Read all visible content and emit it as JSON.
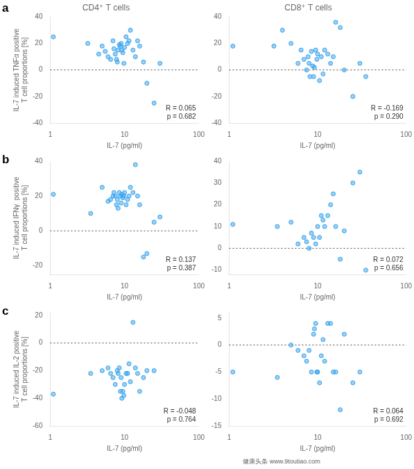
{
  "chart_data": [
    {
      "type": "scatter",
      "title": "CD4⁺ T cells",
      "panel_label": "a",
      "x": [
        1.1,
        3.2,
        4.5,
        5.0,
        5.5,
        6.0,
        6.5,
        7.0,
        7.2,
        7.5,
        7.8,
        8.0,
        8.2,
        8.5,
        8.8,
        9.0,
        9.2,
        9.5,
        9.8,
        10.0,
        10.5,
        11.0,
        11.5,
        12.0,
        13.0,
        14.0,
        15.0,
        16.0,
        18.0,
        20.0,
        25.0,
        30.0
      ],
      "values": [
        25,
        20,
        12,
        18,
        14,
        10,
        8,
        22,
        16,
        12,
        8,
        6,
        15,
        19,
        18,
        20,
        15,
        13,
        5,
        17,
        25,
        20,
        22,
        30,
        15,
        10,
        22,
        18,
        6,
        -10,
        -25,
        5
      ],
      "annotation": "R = 0.065\np = 0.682",
      "reference_line": {
        "value": 0,
        "line_style": "dotted",
        "color": "#444444"
      },
      "xlabel": "IL-7 (pg/ml)",
      "ylabel": "IL-7 induced TNFα positive\nT cell proportions [%]",
      "log": "x",
      "xlim": [
        1,
        100
      ],
      "xticks": [
        1,
        10,
        100
      ],
      "ylim": [
        -40,
        40
      ],
      "yticks": [
        -40,
        -20,
        0,
        20,
        40
      ],
      "grid": false
    },
    {
      "type": "scatter",
      "title": "CD8⁺ T cells",
      "x": [
        1.1,
        3.2,
        4.0,
        5.0,
        6.0,
        6.5,
        7.0,
        7.5,
        7.8,
        8.0,
        8.2,
        8.5,
        8.8,
        9.0,
        9.2,
        9.5,
        9.8,
        10.0,
        10.5,
        11.0,
        11.5,
        12.0,
        13.0,
        14.0,
        15.0,
        16.0,
        18.0,
        20.0,
        25.0,
        30.0,
        35.0
      ],
      "values": [
        18,
        18,
        30,
        20,
        5,
        15,
        8,
        0,
        10,
        5,
        -5,
        14,
        3,
        -5,
        2,
        15,
        8,
        12,
        -8,
        10,
        -3,
        15,
        12,
        5,
        10,
        36,
        32,
        0,
        -20,
        5,
        -5
      ],
      "annotation": "R = -0.169\np = 0.290",
      "reference_line": {
        "value": 0,
        "line_style": "dotted",
        "color": "#444444"
      },
      "xlabel": "IL-7 (pg/ml)",
      "log": "x",
      "xlim": [
        1,
        100
      ],
      "xticks": [
        1,
        10,
        100
      ],
      "ylim": [
        -40,
        40
      ],
      "yticks": [
        -40,
        -20,
        0,
        20,
        40
      ],
      "grid": false
    },
    {
      "type": "scatter",
      "panel_label": "b",
      "x": [
        1.1,
        3.5,
        5.0,
        6.0,
        6.5,
        7.0,
        7.2,
        7.5,
        7.8,
        8.0,
        8.2,
        8.5,
        8.8,
        9.0,
        9.2,
        9.5,
        9.8,
        10.0,
        10.5,
        11.0,
        11.5,
        12.0,
        13.0,
        14.0,
        15.0,
        16.0,
        18.0,
        20.0,
        25.0,
        30.0
      ],
      "values": [
        21,
        10,
        25,
        17,
        18,
        20,
        22,
        20,
        15,
        18,
        13,
        22,
        20,
        16,
        21,
        19,
        20,
        22,
        15,
        18,
        20,
        25,
        22,
        38,
        20,
        15,
        -15,
        -13,
        5,
        8
      ],
      "annotation": "R = 0.137\np = 0.387",
      "reference_line": {
        "value": 0,
        "line_style": "dotted",
        "color": "#444444"
      },
      "xlabel": "IL-7 (pg/ml)",
      "ylabel": "IL-7 induced IFNγ  positive\nT cell proportions [%]",
      "log": "x",
      "xlim": [
        1,
        100
      ],
      "xticks": [
        1,
        10,
        100
      ],
      "ylim": [
        -25,
        40
      ],
      "yticks": [
        -20,
        0,
        20,
        40
      ],
      "grid": false
    },
    {
      "type": "scatter",
      "x": [
        1.1,
        3.5,
        5.0,
        6.0,
        7.0,
        7.5,
        8.0,
        8.5,
        9.0,
        9.5,
        10.0,
        10.5,
        11.0,
        11.5,
        12.0,
        13.0,
        14.0,
        15.0,
        16.0,
        18.0,
        20.0,
        25.0,
        30.0,
        35.0
      ],
      "values": [
        11,
        10,
        12,
        2,
        5,
        3,
        0,
        7,
        5,
        2,
        10,
        5,
        15,
        13,
        10,
        15,
        20,
        25,
        10,
        -5,
        8,
        30,
        35,
        -10
      ],
      "annotation": "R = 0.072\np = 0.656",
      "reference_line": {
        "value": 0,
        "line_style": "dotted",
        "color": "#444444"
      },
      "xlabel": "IL-7 (pg/ml)",
      "log": "x",
      "xlim": [
        1,
        100
      ],
      "xticks": [
        1,
        10,
        100
      ],
      "ylim": [
        -12,
        40
      ],
      "yticks": [
        -10,
        0,
        10,
        20,
        30,
        40
      ],
      "grid": false
    },
    {
      "type": "scatter",
      "panel_label": "c",
      "x": [
        1.1,
        3.5,
        5.0,
        6.0,
        6.5,
        7.0,
        7.5,
        8.0,
        8.2,
        8.5,
        8.8,
        9.0,
        9.2,
        9.5,
        9.8,
        10.0,
        10.5,
        11.0,
        11.5,
        12.0,
        13.0,
        14.0,
        15.0,
        16.0,
        18.0,
        20.0,
        25.0
      ],
      "values": [
        -37,
        -22,
        -20,
        -18,
        -22,
        -25,
        -30,
        -20,
        -22,
        -18,
        -35,
        -25,
        -40,
        -35,
        -38,
        -30,
        -22,
        -22,
        -15,
        -28,
        15,
        -18,
        -22,
        -35,
        -25,
        -20,
        -20
      ],
      "annotation": "R = -0.048\np = 0.764",
      "reference_line": {
        "value": 0,
        "line_style": "dotted",
        "color": "#444444"
      },
      "xlabel": "IL-7 (pg/ml)",
      "ylabel": "IL-7 induced IL-2 positive\nT cell proportions [%]",
      "log": "x",
      "xlim": [
        1,
        100
      ],
      "xticks": [
        1,
        10,
        100
      ],
      "ylim": [
        -60,
        22
      ],
      "yticks": [
        -60,
        -40,
        -20,
        0,
        20
      ],
      "grid": false
    },
    {
      "type": "scatter",
      "x": [
        1.1,
        3.5,
        5.0,
        6.0,
        7.0,
        7.5,
        8.0,
        8.5,
        9.0,
        9.2,
        9.5,
        9.8,
        10.0,
        10.5,
        11.0,
        11.5,
        12.0,
        13.0,
        14.0,
        15.0,
        16.0,
        18.0,
        20.0,
        25.0,
        30.0
      ],
      "values": [
        -5,
        -6,
        0,
        -1,
        -2,
        -3,
        -1,
        -5,
        2,
        3,
        4,
        -5,
        -5,
        -7,
        -2,
        1,
        -3,
        4,
        4,
        -5,
        -5,
        -12,
        2,
        -7,
        -5
      ],
      "annotation": "R = 0.064\np = 0.692",
      "reference_line": {
        "value": 0,
        "line_style": "dotted",
        "color": "#444444"
      },
      "xlabel": "IL-7 (pg/ml)",
      "log": "x",
      "xlim": [
        1,
        100
      ],
      "xticks": [
        1,
        10,
        100
      ],
      "ylim": [
        -15,
        6
      ],
      "yticks": [
        -15,
        -10,
        -5,
        0,
        5
      ],
      "grid": false
    }
  ],
  "footer": "健康头条  www.9toutiao.com"
}
